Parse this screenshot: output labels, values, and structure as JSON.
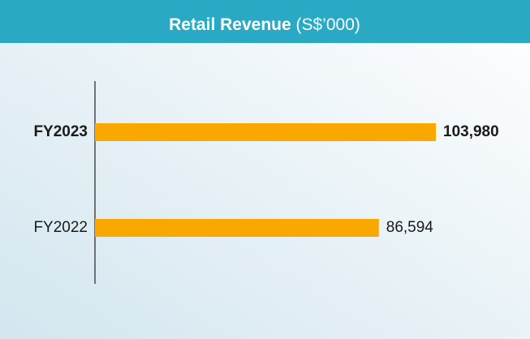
{
  "chart_data": {
    "type": "bar",
    "orientation": "horizontal",
    "title": "Retail Revenue",
    "unit": "(S$’000)",
    "categories": [
      "FY2023",
      "FY2022"
    ],
    "values": [
      103980,
      86594
    ],
    "value_labels": [
      "103,980",
      "86,594"
    ],
    "color": "#f9a800"
  }
}
